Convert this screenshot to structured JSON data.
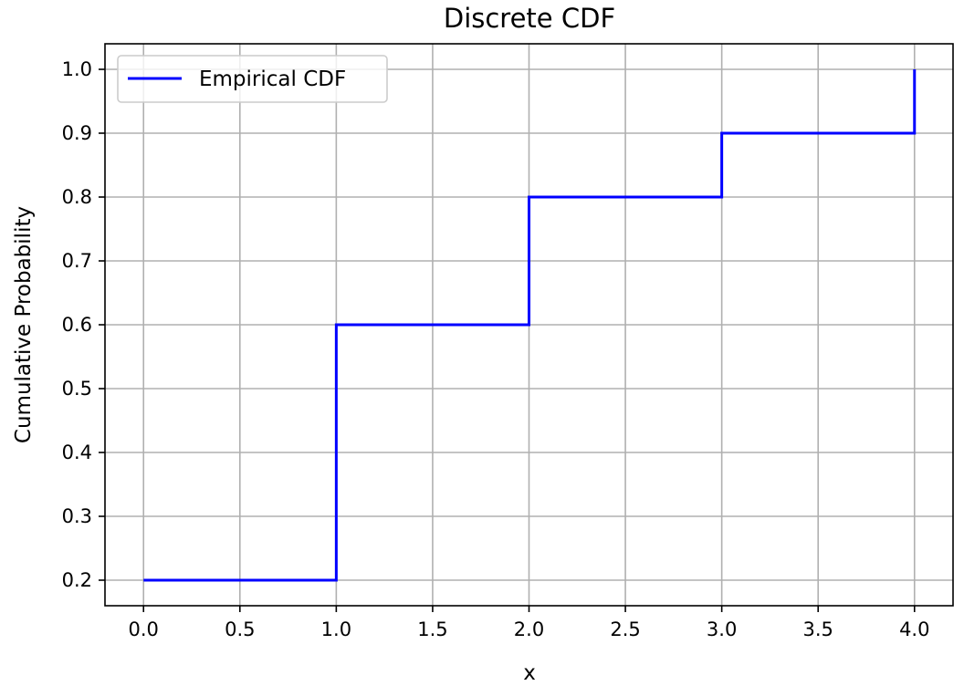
{
  "chart_data": {
    "type": "line",
    "title": "Discrete CDF",
    "xlabel": "x",
    "ylabel": "Cumulative Probability",
    "xlim": [
      -0.2,
      4.2
    ],
    "ylim": [
      0.16,
      1.04
    ],
    "x_ticks": [
      0.0,
      0.5,
      1.0,
      1.5,
      2.0,
      2.5,
      3.0,
      3.5,
      4.0
    ],
    "x_tick_labels": [
      "0.0",
      "0.5",
      "1.0",
      "1.5",
      "2.0",
      "2.5",
      "3.0",
      "3.5",
      "4.0"
    ],
    "y_ticks": [
      0.2,
      0.3,
      0.4,
      0.5,
      0.6,
      0.7,
      0.8,
      0.9,
      1.0
    ],
    "y_tick_labels": [
      "0.2",
      "0.3",
      "0.4",
      "0.5",
      "0.6",
      "0.7",
      "0.8",
      "0.9",
      "1.0"
    ],
    "grid": true,
    "legend_position": "top-left",
    "series": [
      {
        "name": "Empirical CDF",
        "color": "#0000ff",
        "step": "post",
        "x": [
          0,
          1,
          2,
          3,
          4
        ],
        "y": [
          0.2,
          0.6,
          0.8,
          0.9,
          1.0
        ]
      }
    ]
  }
}
